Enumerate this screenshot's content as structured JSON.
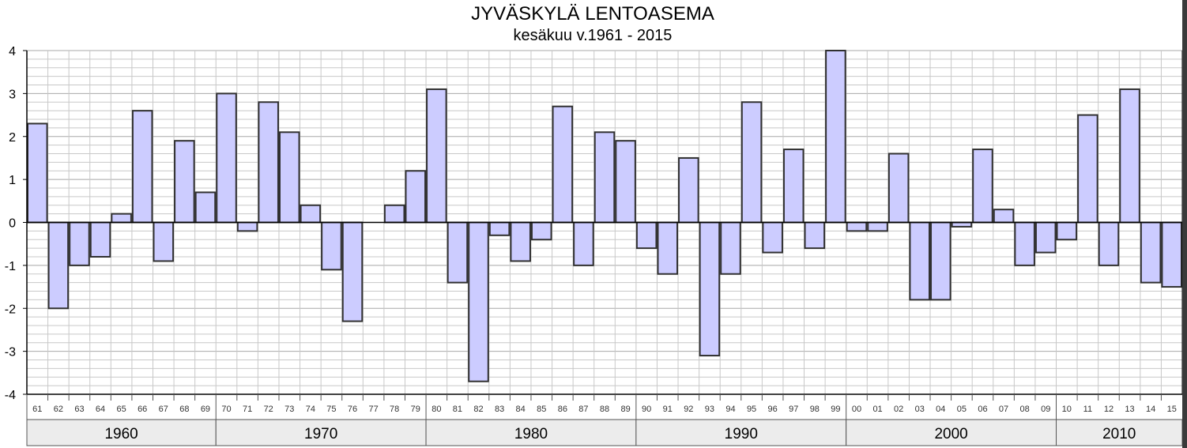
{
  "chart_data": {
    "type": "bar",
    "title": "JYVÄSKYLÄ LENTOASEMA",
    "subtitle": "kesäkuu v.1961 - 2015",
    "xlabel": "",
    "ylabel": "",
    "ylim": [
      -4,
      4
    ],
    "yticks": [
      "4",
      "3",
      "2",
      "1",
      "0",
      "-1",
      "-2",
      "-3",
      "-4"
    ],
    "grid": true,
    "categories": [
      "61",
      "62",
      "63",
      "64",
      "65",
      "66",
      "67",
      "68",
      "69",
      "70",
      "71",
      "72",
      "73",
      "74",
      "75",
      "76",
      "77",
      "78",
      "79",
      "80",
      "81",
      "82",
      "83",
      "84",
      "85",
      "86",
      "87",
      "88",
      "89",
      "90",
      "91",
      "92",
      "93",
      "94",
      "95",
      "96",
      "97",
      "98",
      "99",
      "00",
      "01",
      "02",
      "03",
      "04",
      "05",
      "06",
      "07",
      "08",
      "09",
      "10",
      "11",
      "12",
      "13",
      "14",
      "15"
    ],
    "values": [
      2.3,
      -2.0,
      -1.0,
      -0.8,
      0.2,
      2.6,
      -0.9,
      1.9,
      0.7,
      3.0,
      -0.2,
      2.8,
      2.1,
      0.4,
      -1.1,
      -2.3,
      0.0,
      0.4,
      1.2,
      3.1,
      -1.4,
      -3.7,
      -0.3,
      -0.9,
      -0.4,
      2.7,
      -1.0,
      2.1,
      1.9,
      -0.6,
      -1.2,
      1.5,
      -3.1,
      -1.2,
      2.8,
      -0.7,
      1.7,
      -0.6,
      4.0,
      -0.2,
      -0.2,
      1.6,
      -1.8,
      -1.8,
      -0.1,
      1.7,
      0.3,
      -1.0,
      -0.7,
      -0.4,
      2.5,
      -1.0,
      3.1,
      -1.4,
      -1.5
    ],
    "decades": [
      {
        "label": "1960",
        "first": 0,
        "last": 8
      },
      {
        "label": "1970",
        "first": 9,
        "last": 18
      },
      {
        "label": "1980",
        "first": 19,
        "last": 28
      },
      {
        "label": "1990",
        "first": 29,
        "last": 38
      },
      {
        "label": "2000",
        "first": 39,
        "last": 48
      },
      {
        "label": "2010",
        "first": 49,
        "last": 54
      }
    ],
    "colors": {
      "bar_fill": "#ccccff",
      "bar_stroke": "#303030",
      "grid": "#c8c8c8",
      "axis": "#000000",
      "decade_fill": "#ececec"
    }
  }
}
